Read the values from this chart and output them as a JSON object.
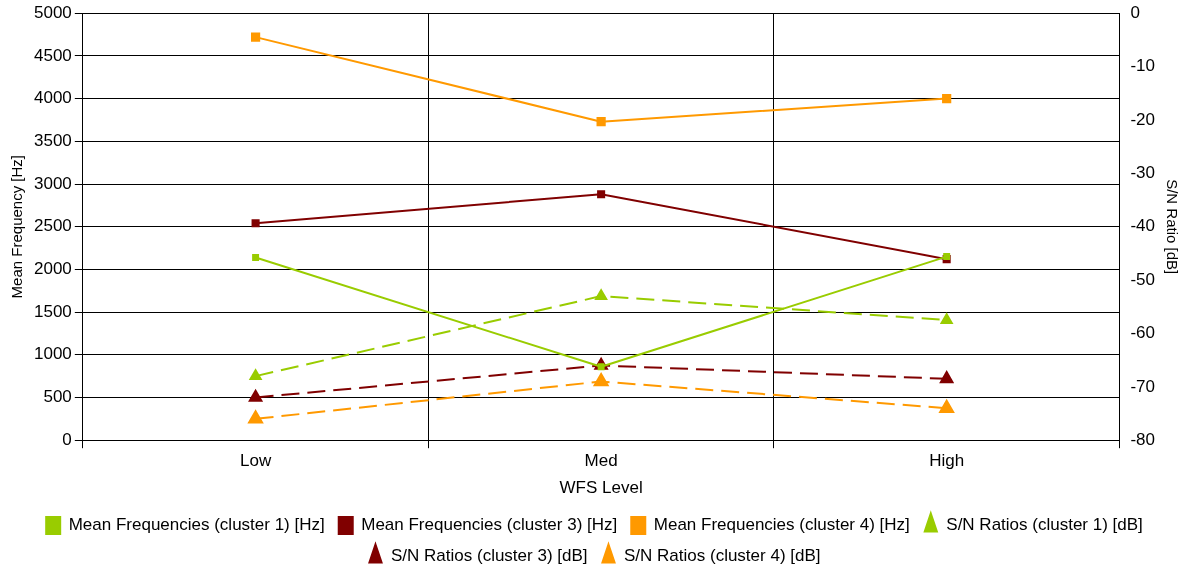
{
  "chart_data": {
    "type": "line",
    "xlabel": "WFS Level",
    "ylabel": "Mean Frequency [Hz]",
    "y2label": "S/N Ratio [dB]",
    "categories": [
      "Low",
      "Med",
      "High"
    ],
    "ylim": [
      0,
      5000
    ],
    "yticks": [
      0,
      500,
      1000,
      1500,
      2000,
      2500,
      3000,
      3500,
      4000,
      4500,
      5000
    ],
    "y2lim": [
      -80,
      0
    ],
    "y2ticks": [
      -80,
      -70,
      -60,
      -50,
      -40,
      -30,
      -20,
      -10,
      0
    ],
    "grid": true,
    "legend": "bottom",
    "series": [
      {
        "name": "Mean Frequencies (cluster 1) [Hz]",
        "color": "#99cc00",
        "values": [
          2140,
          860,
          2150
        ],
        "marker": "square",
        "line_style": "solid"
      },
      {
        "name": "Mean Frequencies (cluster 3) [Hz]",
        "color": "#800000",
        "values": [
          2540,
          2880,
          2120
        ],
        "marker": "square",
        "line_style": "solid"
      },
      {
        "name": "Mean Frequencies (cluster 4) [Hz]",
        "color": "#ff9900",
        "values": [
          4720,
          3730,
          4000
        ],
        "marker": "square",
        "line_style": "solid"
      },
      {
        "name": "S/N Ratios (cluster 1) [dB]",
        "color": "#99cc00",
        "values": [
          -68,
          -53,
          -57.5
        ],
        "axis": "y2",
        "marker": "triangle",
        "line_style": "dashed"
      },
      {
        "name": "S/N Ratios (cluster 3) [dB]",
        "color": "#800000",
        "values": [
          -72,
          -66,
          -68.5
        ],
        "axis": "y2",
        "marker": "triangle",
        "line_style": "dashed"
      },
      {
        "name": "S/N Ratios (cluster 4) [dB]",
        "color": "#ff9900",
        "values": [
          -76,
          -69,
          -74
        ],
        "axis": "y2",
        "marker": "triangle",
        "line_style": "dashed"
      }
    ]
  }
}
